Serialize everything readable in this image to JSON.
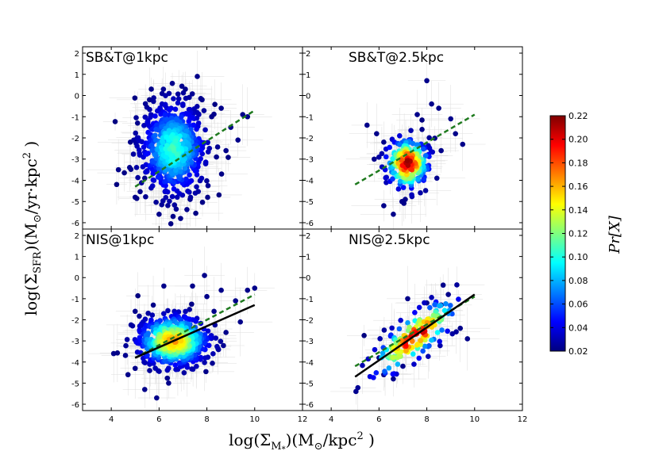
{
  "figure": {
    "ylabel_main": "log(Σ",
    "ylabel_sub": "SFR",
    "ylabel_rest": ")(M",
    "ylabel_sun": "⊙",
    "ylabel_unit": "/yr·kpc",
    "ylabel_sup": "2",
    "ylabel_end": " )",
    "xlabel_main": "log(Σ",
    "xlabel_sub": "M",
    "xlabel_subsub": "*",
    "xlabel_rest": ")(M",
    "xlabel_sun": "⊙",
    "xlabel_unit": "/kpc",
    "xlabel_sup": "2",
    "xlabel_end": " )"
  },
  "colorbar": {
    "label": "Pr[X]",
    "ticks": [
      "0.02",
      "0.04",
      "0.06",
      "0.08",
      "0.10",
      "0.12",
      "0.14",
      "0.16",
      "0.18",
      "0.20",
      "0.22"
    ],
    "range": [
      0.02,
      0.22
    ],
    "colors": [
      "#00007f",
      "#0000ff",
      "#007fff",
      "#00ffff",
      "#7fff7f",
      "#ffff00",
      "#ff7f00",
      "#ff0000",
      "#7f0000"
    ]
  },
  "chart_data": [
    {
      "type": "scatter",
      "title": "SB&T@1kpc",
      "xlim": [
        2.8,
        12
      ],
      "ylim": [
        -6.3,
        2.3
      ],
      "xticks": [
        "4",
        "6",
        "8",
        "10",
        "12"
      ],
      "yticks": [
        "-6",
        "-5",
        "-4",
        "-3",
        "-2",
        "-1",
        "0",
        "1",
        "2"
      ],
      "cloud": {
        "cx": 6.6,
        "cy": -2.5,
        "sx": 0.7,
        "sy": 1.1,
        "n": 700,
        "pmax": 0.11
      },
      "outliers": [
        [
          4.3,
          -3.5
        ],
        [
          5.1,
          -1.3
        ],
        [
          5.6,
          -0.2
        ],
        [
          7.6,
          0.9
        ],
        [
          8.2,
          -1.0
        ],
        [
          8.6,
          -0.6
        ],
        [
          9.0,
          -1.5
        ],
        [
          9.3,
          -2.1
        ],
        [
          9.7,
          -1.0
        ],
        [
          8.8,
          -2.6
        ],
        [
          5.0,
          -4.8
        ],
        [
          6.0,
          -5.6
        ],
        [
          6.9,
          -5.8
        ],
        [
          7.3,
          -4.9
        ],
        [
          4.8,
          -2.2
        ],
        [
          7.8,
          -0.2
        ],
        [
          8.4,
          -2.9
        ],
        [
          5.4,
          -3.9
        ],
        [
          9.5,
          -0.9
        ],
        [
          7.1,
          0.3
        ]
      ],
      "dashed_fit": {
        "x": [
          5.0,
          10.0
        ],
        "y": [
          -4.3,
          -0.7
        ]
      },
      "solid_fit": null
    },
    {
      "type": "scatter",
      "title": "SB&T@2.5kpc",
      "xlim": [
        2.8,
        12
      ],
      "ylim": [
        -6.3,
        2.3
      ],
      "xticks": [
        "4",
        "6",
        "8",
        "10",
        "12"
      ],
      "yticks": [
        "-6",
        "-5",
        "-4",
        "-3",
        "-2",
        "-1",
        "0",
        "1",
        "2"
      ],
      "cloud": {
        "cx": 7.2,
        "cy": -3.2,
        "sx": 0.45,
        "sy": 0.6,
        "n": 260,
        "pmax": 0.22
      },
      "outliers": [
        [
          5.5,
          -1.4
        ],
        [
          5.9,
          -1.8
        ],
        [
          6.2,
          -2.2
        ],
        [
          7.8,
          -1.6
        ],
        [
          8.0,
          0.7
        ],
        [
          8.2,
          -0.4
        ],
        [
          8.5,
          -0.6
        ],
        [
          9.0,
          -1.1
        ],
        [
          9.5,
          -2.3
        ],
        [
          6.2,
          -5.2
        ],
        [
          6.6,
          -5.6
        ],
        [
          7.1,
          -4.9
        ],
        [
          5.8,
          -3.0
        ],
        [
          8.6,
          -2.6
        ],
        [
          7.6,
          -0.9
        ],
        [
          9.2,
          -1.8
        ]
      ],
      "dashed_fit": {
        "x": [
          5.0,
          10.0
        ],
        "y": [
          -4.2,
          -0.9
        ]
      },
      "solid_fit": null
    },
    {
      "type": "scatter",
      "title": "NIS@1kpc",
      "xlim": [
        2.8,
        12
      ],
      "ylim": [
        -6.3,
        2.3
      ],
      "xticks": [
        "4",
        "6",
        "8",
        "10",
        "12"
      ],
      "yticks": [
        "-6",
        "-5",
        "-4",
        "-3",
        "-2",
        "-1",
        "0",
        "1",
        "2"
      ],
      "cloud": {
        "cx": 6.6,
        "cy": -3.0,
        "sx": 0.75,
        "sy": 0.6,
        "n": 650,
        "pmax": 0.17
      },
      "outliers": [
        [
          4.1,
          -3.6
        ],
        [
          5.0,
          -4.3
        ],
        [
          5.4,
          -5.3
        ],
        [
          5.9,
          -5.7
        ],
        [
          6.4,
          -5.0
        ],
        [
          5.0,
          -1.6
        ],
        [
          6.2,
          -0.4
        ],
        [
          7.4,
          -0.4
        ],
        [
          8.0,
          -0.9
        ],
        [
          8.6,
          -0.6
        ],
        [
          9.2,
          -1.1
        ],
        [
          9.7,
          -0.6
        ],
        [
          10.0,
          -0.5
        ],
        [
          9.4,
          -2.1
        ],
        [
          8.8,
          -2.6
        ],
        [
          4.7,
          -4.6
        ],
        [
          7.9,
          0.1
        ],
        [
          8.3,
          -1.6
        ]
      ],
      "dashed_fit": {
        "x": [
          5.0,
          10.0
        ],
        "y": [
          -3.8,
          -0.8
        ]
      },
      "solid_fit": {
        "x": [
          5.0,
          10.0
        ],
        "y": [
          -3.8,
          -1.3
        ]
      }
    },
    {
      "type": "scatter",
      "title": "NIS@2.5kpc",
      "xlim": [
        2.8,
        12
      ],
      "ylim": [
        -6.3,
        2.3
      ],
      "xticks": [
        "4",
        "6",
        "8",
        "10",
        "12"
      ],
      "yticks": [
        "-6",
        "-5",
        "-4",
        "-3",
        "-2",
        "-1",
        "0",
        "1",
        "2"
      ],
      "cloud": {
        "cx": 7.5,
        "cy": -2.8,
        "sx": 0.9,
        "sy": 0.55,
        "n": 170,
        "pmax": 0.22,
        "slope": 0.8
      },
      "outliers": [
        [
          6.2,
          -4.6
        ],
        [
          6.6,
          -4.8
        ],
        [
          7.0,
          -4.2
        ],
        [
          6.0,
          -3.8
        ],
        [
          9.4,
          -2.4
        ],
        [
          9.7,
          -2.9
        ],
        [
          8.0,
          -1.2
        ],
        [
          8.6,
          -1.3
        ],
        [
          7.2,
          -1.0
        ],
        [
          8.9,
          -0.8
        ]
      ],
      "dashed_fit": {
        "x": [
          5.0,
          10.0
        ],
        "y": [
          -4.2,
          -0.9
        ]
      },
      "solid_fit": {
        "x": [
          5.0,
          10.0
        ],
        "y": [
          -4.7,
          -0.8
        ]
      }
    }
  ]
}
